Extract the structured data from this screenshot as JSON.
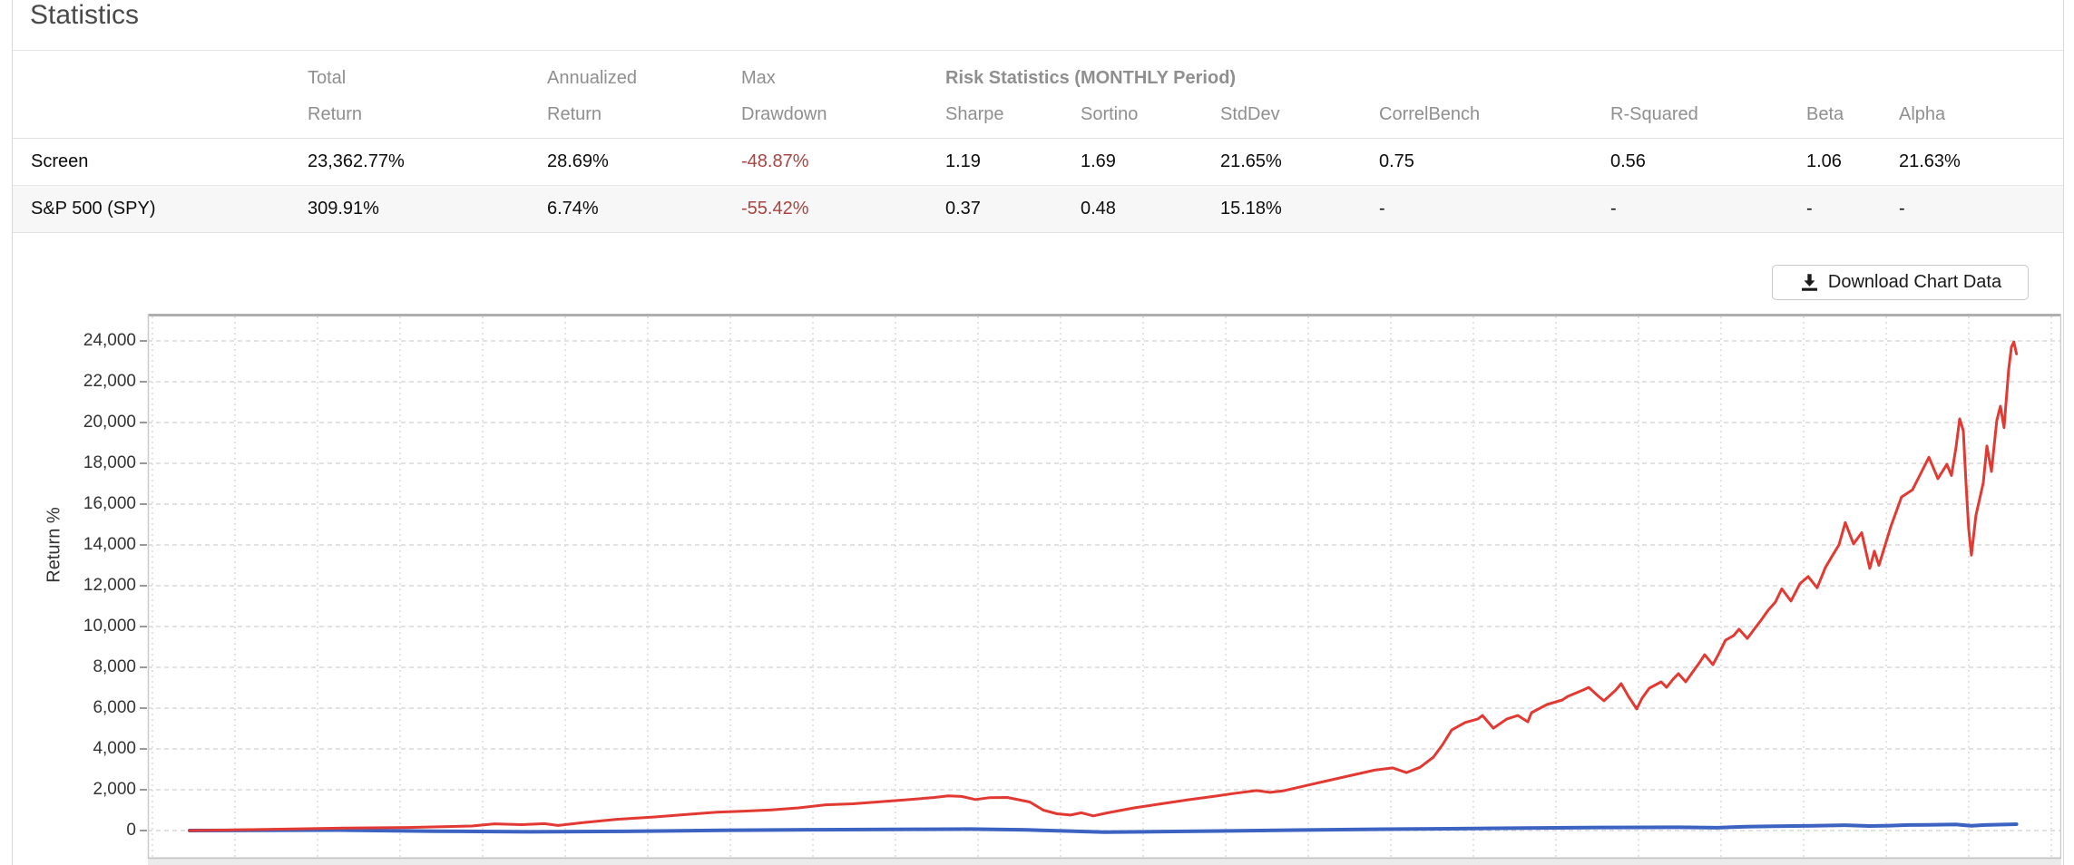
{
  "page": {
    "title": "Statistics"
  },
  "toolbar": {
    "download_label": "Download Chart Data"
  },
  "table": {
    "header": {
      "total": "Total",
      "annualized": "Annualized",
      "max": "Max",
      "risk_group": "Risk Statistics (MONTHLY Period)",
      "sub": [
        "Return",
        "Return",
        "Drawdown",
        "Sharpe",
        "Sortino",
        "StdDev",
        "CorrelBench",
        "R-Squared",
        "Beta",
        "Alpha"
      ]
    },
    "rows": [
      {
        "name": "Screen",
        "total_return": "23,362.77%",
        "annualized_return": "28.69%",
        "max_drawdown": "-48.87%",
        "sharpe": "1.19",
        "sortino": "1.69",
        "stddev": "21.65%",
        "correlbench": "0.75",
        "r_squared": "0.56",
        "beta": "1.06",
        "alpha": "21.63%"
      },
      {
        "name": "S&P 500 (SPY)",
        "total_return": "309.91%",
        "annualized_return": "6.74%",
        "max_drawdown": "-55.42%",
        "sharpe": "0.37",
        "sortino": "0.48",
        "stddev": "15.18%",
        "correlbench": "-",
        "r_squared": "-",
        "beta": "-",
        "alpha": "-"
      }
    ]
  },
  "chart_data": {
    "type": "line",
    "title": "",
    "xlabel": "",
    "ylabel": "Return %",
    "grid": true,
    "legend_position": "none",
    "yticks": [
      0,
      2000,
      4000,
      6000,
      8000,
      10000,
      12000,
      14000,
      16000,
      18000,
      20000,
      22000,
      24000
    ],
    "ylim": [
      -1690,
      25330
    ],
    "x_gridline_count": 24,
    "colors": {
      "screen_line": "#e23a33",
      "benchmark_line": "#3c63c2",
      "negative_text": "#a94442"
    },
    "series": [
      {
        "name": "Screen",
        "color": "#e23a33",
        "final_value_pct": 23362.77,
        "points": [
          [
            0.0218,
            0
          ],
          [
            0.046,
            30
          ],
          [
            0.065,
            60
          ],
          [
            0.1029,
            120
          ],
          [
            0.1361,
            150
          ],
          [
            0.1693,
            220
          ],
          [
            0.1811,
            330
          ],
          [
            0.1954,
            290
          ],
          [
            0.2072,
            340
          ],
          [
            0.2143,
            250
          ],
          [
            0.2262,
            380
          ],
          [
            0.2451,
            550
          ],
          [
            0.2641,
            660
          ],
          [
            0.2831,
            800
          ],
          [
            0.2973,
            900
          ],
          [
            0.3115,
            950
          ],
          [
            0.3258,
            1010
          ],
          [
            0.34,
            1110
          ],
          [
            0.3542,
            1260
          ],
          [
            0.3684,
            1310
          ],
          [
            0.3827,
            1410
          ],
          [
            0.3969,
            1510
          ],
          [
            0.4111,
            1620
          ],
          [
            0.4182,
            1700
          ],
          [
            0.4253,
            1670
          ],
          [
            0.4325,
            1520
          ],
          [
            0.4396,
            1610
          ],
          [
            0.4491,
            1620
          ],
          [
            0.4609,
            1400
          ],
          [
            0.468,
            1000
          ],
          [
            0.4751,
            820
          ],
          [
            0.4822,
            760
          ],
          [
            0.4879,
            870
          ],
          [
            0.4941,
            720
          ],
          [
            0.5012,
            860
          ],
          [
            0.5154,
            1110
          ],
          [
            0.5296,
            1310
          ],
          [
            0.5439,
            1510
          ],
          [
            0.5581,
            1690
          ],
          [
            0.5685,
            1830
          ],
          [
            0.5794,
            1960
          ],
          [
            0.5865,
            1870
          ],
          [
            0.5937,
            1950
          ],
          [
            0.6055,
            2210
          ],
          [
            0.6174,
            2460
          ],
          [
            0.6292,
            2710
          ],
          [
            0.6411,
            2960
          ],
          [
            0.6506,
            3070
          ],
          [
            0.6577,
            2840
          ],
          [
            0.6648,
            3100
          ],
          [
            0.6719,
            3600
          ],
          [
            0.6766,
            4200
          ],
          [
            0.6814,
            4930
          ],
          [
            0.6885,
            5300
          ],
          [
            0.6951,
            5470
          ],
          [
            0.6975,
            5640
          ],
          [
            0.7032,
            5020
          ],
          [
            0.7103,
            5470
          ],
          [
            0.716,
            5640
          ],
          [
            0.7212,
            5330
          ],
          [
            0.7231,
            5780
          ],
          [
            0.7312,
            6180
          ],
          [
            0.7392,
            6400
          ],
          [
            0.7421,
            6580
          ],
          [
            0.7501,
            6890
          ],
          [
            0.753,
            7020
          ],
          [
            0.7582,
            6580
          ],
          [
            0.761,
            6360
          ],
          [
            0.7672,
            6890
          ],
          [
            0.77,
            7200
          ],
          [
            0.7738,
            6580
          ],
          [
            0.7781,
            5960
          ],
          [
            0.7809,
            6490
          ],
          [
            0.7847,
            6980
          ],
          [
            0.7909,
            7290
          ],
          [
            0.7937,
            7020
          ],
          [
            0.7971,
            7420
          ],
          [
            0.7999,
            7690
          ],
          [
            0.8037,
            7290
          ],
          [
            0.807,
            7730
          ],
          [
            0.8108,
            8220
          ],
          [
            0.8136,
            8620
          ],
          [
            0.8179,
            8130
          ],
          [
            0.8207,
            8620
          ],
          [
            0.8245,
            9330
          ],
          [
            0.8288,
            9560
          ],
          [
            0.8316,
            9870
          ],
          [
            0.8359,
            9420
          ],
          [
            0.8388,
            9780
          ],
          [
            0.8435,
            10360
          ],
          [
            0.8468,
            10800
          ],
          [
            0.8506,
            11200
          ],
          [
            0.8539,
            11850
          ],
          [
            0.8587,
            11250
          ],
          [
            0.8634,
            12100
          ],
          [
            0.8677,
            12450
          ],
          [
            0.8724,
            11900
          ],
          [
            0.8767,
            12900
          ],
          [
            0.8805,
            13500
          ],
          [
            0.8838,
            14000
          ],
          [
            0.8871,
            15100
          ],
          [
            0.8914,
            14050
          ],
          [
            0.8957,
            14600
          ],
          [
            0.8999,
            12850
          ],
          [
            0.9023,
            13700
          ],
          [
            0.9047,
            13000
          ],
          [
            0.9109,
            14900
          ],
          [
            0.9165,
            16350
          ],
          [
            0.9222,
            16700
          ],
          [
            0.926,
            17400
          ],
          [
            0.9308,
            18300
          ],
          [
            0.9355,
            17250
          ],
          [
            0.9402,
            17950
          ],
          [
            0.9426,
            17400
          ],
          [
            0.945,
            18800
          ],
          [
            0.9469,
            20180
          ],
          [
            0.9488,
            19600
          ],
          [
            0.9502,
            17000
          ],
          [
            0.9516,
            14800
          ],
          [
            0.953,
            13500
          ],
          [
            0.9554,
            15450
          ],
          [
            0.9592,
            17050
          ],
          [
            0.9611,
            18850
          ],
          [
            0.9635,
            17600
          ],
          [
            0.9663,
            20100
          ],
          [
            0.9682,
            20800
          ],
          [
            0.9701,
            19750
          ],
          [
            0.9725,
            22600
          ],
          [
            0.9739,
            23700
          ],
          [
            0.9752,
            23950
          ],
          [
            0.9766,
            23363
          ]
        ]
      },
      {
        "name": "S&P 500 (SPY)",
        "color": "#3c63c2",
        "final_value_pct": 309.91,
        "points": [
          [
            0.0218,
            0
          ],
          [
            0.06,
            10
          ],
          [
            0.1,
            20
          ],
          [
            0.15,
            -30
          ],
          [
            0.2,
            -60
          ],
          [
            0.25,
            -40
          ],
          [
            0.3,
            10
          ],
          [
            0.35,
            40
          ],
          [
            0.4,
            60
          ],
          [
            0.43,
            70
          ],
          [
            0.46,
            30
          ],
          [
            0.48,
            -20
          ],
          [
            0.5,
            -80
          ],
          [
            0.52,
            -60
          ],
          [
            0.56,
            -20
          ],
          [
            0.6,
            20
          ],
          [
            0.64,
            60
          ],
          [
            0.68,
            90
          ],
          [
            0.72,
            120
          ],
          [
            0.76,
            150
          ],
          [
            0.8,
            160
          ],
          [
            0.82,
            140
          ],
          [
            0.835,
            190
          ],
          [
            0.85,
            210
          ],
          [
            0.87,
            230
          ],
          [
            0.887,
            260
          ],
          [
            0.9,
            220
          ],
          [
            0.91,
            240
          ],
          [
            0.92,
            270
          ],
          [
            0.93,
            280
          ],
          [
            0.945,
            300
          ],
          [
            0.953,
            230
          ],
          [
            0.96,
            270
          ],
          [
            0.9766,
            309.91
          ]
        ]
      }
    ]
  }
}
